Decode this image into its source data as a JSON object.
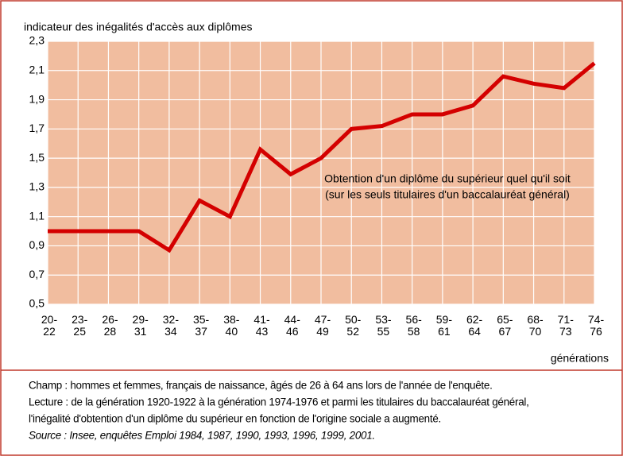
{
  "chart_data": {
    "type": "line",
    "y_axis_label": "indicateur des inégalités d'accès aux diplômes",
    "x_axis_label": "générations",
    "categories": [
      "20-\n22",
      "23-\n25",
      "26-\n28",
      "29-\n31",
      "32-\n34",
      "35-\n37",
      "38-\n40",
      "41-\n43",
      "44-\n46",
      "47-\n49",
      "50-\n52",
      "53-\n55",
      "56-\n58",
      "59-\n61",
      "62-\n64",
      "65-\n67",
      "68-\n70",
      "71-\n73",
      "74-\n76"
    ],
    "series": [
      {
        "name": "Obtention d'un diplôme du supérieur quel qu'il soit",
        "color": "#d40000",
        "values": [
          1.0,
          1.0,
          1.0,
          1.0,
          0.87,
          1.21,
          1.1,
          1.56,
          1.39,
          1.5,
          1.7,
          1.72,
          1.8,
          1.8,
          1.86,
          2.06,
          2.01,
          1.98,
          2.15
        ]
      }
    ],
    "annotation": [
      "Obtention d'un diplôme du supérieur quel qu'il soit",
      "(sur les seuls titulaires d'un baccalauréat général)"
    ],
    "ylim": [
      0.5,
      2.3
    ],
    "yticks": [
      {
        "value": 0.5,
        "label": "0,5"
      },
      {
        "value": 0.7,
        "label": "0,7"
      },
      {
        "value": 0.9,
        "label": "0,9"
      },
      {
        "value": 1.1,
        "label": "1,1"
      },
      {
        "value": 1.3,
        "label": "1,3"
      },
      {
        "value": 1.5,
        "label": "1,5"
      },
      {
        "value": 1.7,
        "label": "1,7"
      },
      {
        "value": 1.9,
        "label": "1,9"
      },
      {
        "value": 2.1,
        "label": "2,1"
      },
      {
        "value": 2.3,
        "label": "2,3"
      }
    ],
    "grid": true,
    "background": "#f1bd9f",
    "notes": [
      "Champ : hommes et femmes, français de naissance, âgés de 26 à 64 ans lors de l'année de l'enquête.",
      "Lecture : de la génération 1920-1922 à la génération 1974-1976 et parmi les titulaires du baccalauréat général,",
      "l'inégalité d'obtention d'un diplôme du supérieur en fonction de l'origine sociale a augmenté."
    ],
    "source": "Source : Insee, enquêtes Emploi 1984, 1987, 1990, 1993, 1996, 1999, 2001."
  }
}
